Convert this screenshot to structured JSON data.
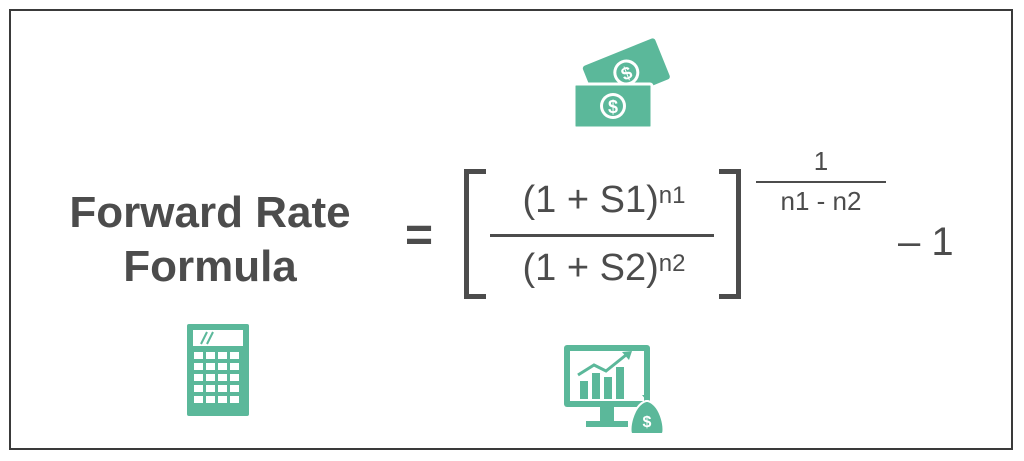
{
  "title": {
    "line1": "Forward Rate",
    "line2": "Formula"
  },
  "formula": {
    "equals": "=",
    "numerator_base": "(1 + S1)",
    "numerator_exp": "n1",
    "denominator_base": "(1 + S2)",
    "denominator_exp": "n2",
    "outer_exp_numerator": "1",
    "outer_exp_denominator": "n1 - n2",
    "tail": "– 1"
  },
  "icons": [
    "money-bills-icon",
    "calculator-icon",
    "monitor-chart-money-bag-icon"
  ],
  "colors": {
    "icon": "#5bb89a",
    "text": "#4c4c4c",
    "border": "#3a3a3a"
  }
}
